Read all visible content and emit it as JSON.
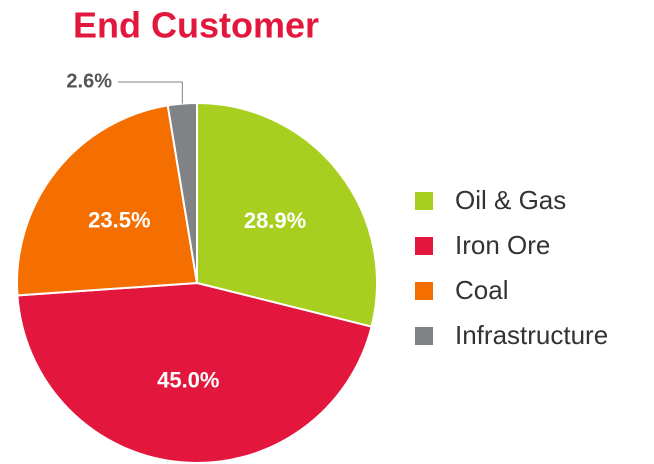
{
  "chart_data": {
    "type": "pie",
    "title": "End Customer",
    "categories": [
      "Oil & Gas",
      "Iron Ore",
      "Coal",
      "Infrastructure"
    ],
    "values": [
      28.9,
      45.0,
      23.5,
      2.6
    ],
    "value_labels": [
      "28.9%",
      "45.0%",
      "23.5%",
      "2.6%"
    ],
    "colors": [
      "#a8cf1f",
      "#e3173d",
      "#f46f00",
      "#808285"
    ],
    "legend": "right"
  }
}
